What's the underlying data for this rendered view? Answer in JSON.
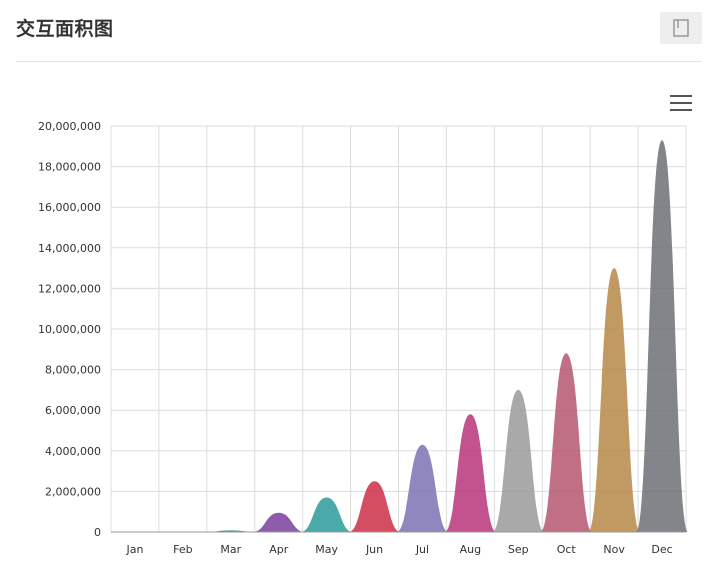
{
  "header": {
    "title": "交互面积图",
    "save_icon": "document-save-icon"
  },
  "toolbar": {
    "menu_icon": "hamburger-menu-icon"
  },
  "chart_data": {
    "type": "area",
    "title": "",
    "xlabel": "",
    "ylabel": "",
    "categories": [
      "Jan",
      "Feb",
      "Mar",
      "Apr",
      "May",
      "Jun",
      "Jul",
      "Aug",
      "Sep",
      "Oct",
      "Nov",
      "Dec"
    ],
    "values": [
      0,
      0,
      80000,
      950000,
      1700000,
      2500000,
      4300000,
      5800000,
      7000000,
      8800000,
      13000000,
      19300000
    ],
    "colors": [
      "#6b6b6b",
      "#3c8dbc",
      "#2e8b57",
      "#7b3f9e",
      "#2a9a9a",
      "#cc2e45",
      "#7d72b4",
      "#b8357a",
      "#9a9a9a",
      "#b5566e",
      "#b58847",
      "#6c7075"
    ],
    "ylim": [
      0,
      20000000
    ],
    "yticks": [
      "0",
      "2,000,000",
      "4,000,000",
      "6,000,000",
      "8,000,000",
      "10,000,000",
      "12,000,000",
      "14,000,000",
      "16,000,000",
      "18,000,000",
      "20,000,000"
    ],
    "grid": true,
    "legend": "none"
  }
}
